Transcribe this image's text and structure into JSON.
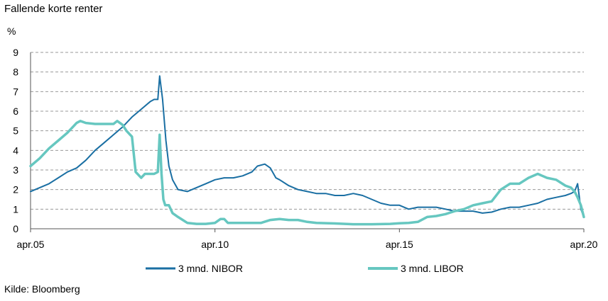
{
  "title": "Fallende korte renter",
  "unit": "%",
  "source": "Kilde: Bloomberg",
  "chart_data": {
    "type": "line",
    "title": "Fallende korte renter",
    "ylabel": "%",
    "ylim": [
      0,
      9
    ],
    "xlim": [
      2005.25,
      2020.25
    ],
    "y_ticks": [
      "0",
      "1",
      "2",
      "3",
      "4",
      "5",
      "6",
      "7",
      "8",
      "9"
    ],
    "x_ticks": [
      {
        "label": "apr.05",
        "value": 2005.25
      },
      {
        "label": "apr.10",
        "value": 2010.25
      },
      {
        "label": "apr.15",
        "value": 2015.25
      },
      {
        "label": "apr.20",
        "value": 2020.25
      }
    ],
    "grid": true,
    "legend_position": "bottom",
    "series": [
      {
        "name": "3 mnd. NIBOR",
        "color": "#1a6fa3",
        "x": [
          2005.25,
          2005.5,
          2005.75,
          2006.0,
          2006.25,
          2006.5,
          2006.75,
          2007.0,
          2007.25,
          2007.5,
          2007.75,
          2008.0,
          2008.25,
          2008.5,
          2008.6,
          2008.7,
          2008.75,
          2008.83,
          2008.92,
          2009.0,
          2009.1,
          2009.25,
          2009.5,
          2009.75,
          2010.0,
          2010.25,
          2010.5,
          2010.75,
          2011.0,
          2011.25,
          2011.4,
          2011.6,
          2011.75,
          2011.9,
          2012.0,
          2012.25,
          2012.5,
          2012.75,
          2013.0,
          2013.25,
          2013.5,
          2013.75,
          2014.0,
          2014.25,
          2014.5,
          2014.75,
          2015.0,
          2015.25,
          2015.5,
          2015.75,
          2016.0,
          2016.25,
          2016.5,
          2016.75,
          2017.0,
          2017.25,
          2017.5,
          2017.75,
          2018.0,
          2018.25,
          2018.5,
          2018.75,
          2019.0,
          2019.25,
          2019.5,
          2019.75,
          2019.9,
          2020.0,
          2020.08,
          2020.17,
          2020.25
        ],
        "values": [
          1.9,
          2.1,
          2.3,
          2.6,
          2.9,
          3.1,
          3.5,
          4.0,
          4.4,
          4.8,
          5.2,
          5.7,
          6.1,
          6.5,
          6.6,
          6.6,
          7.8,
          6.6,
          4.5,
          3.2,
          2.5,
          2.0,
          1.9,
          2.1,
          2.3,
          2.5,
          2.6,
          2.6,
          2.7,
          2.9,
          3.2,
          3.3,
          3.1,
          2.6,
          2.5,
          2.2,
          2.0,
          1.9,
          1.8,
          1.8,
          1.7,
          1.7,
          1.8,
          1.7,
          1.5,
          1.3,
          1.2,
          1.2,
          1.0,
          1.1,
          1.1,
          1.1,
          1.0,
          0.9,
          0.9,
          0.9,
          0.8,
          0.85,
          1.0,
          1.1,
          1.1,
          1.2,
          1.3,
          1.5,
          1.6,
          1.7,
          1.8,
          1.9,
          2.3,
          1.0,
          0.6
        ]
      },
      {
        "name": "3 mnd. LIBOR",
        "color": "#66c7c0",
        "x": [
          2005.25,
          2005.5,
          2005.75,
          2006.0,
          2006.25,
          2006.5,
          2006.6,
          2006.75,
          2007.0,
          2007.25,
          2007.5,
          2007.6,
          2007.75,
          2007.85,
          2008.0,
          2008.1,
          2008.25,
          2008.35,
          2008.5,
          2008.6,
          2008.7,
          2008.75,
          2008.8,
          2008.85,
          2008.9,
          2009.0,
          2009.1,
          2009.25,
          2009.5,
          2009.75,
          2010.0,
          2010.25,
          2010.4,
          2010.5,
          2010.6,
          2010.75,
          2011.0,
          2011.25,
          2011.5,
          2011.75,
          2012.0,
          2012.25,
          2012.5,
          2012.75,
          2013.0,
          2013.5,
          2014.0,
          2014.5,
          2015.0,
          2015.25,
          2015.5,
          2015.75,
          2016.0,
          2016.25,
          2016.5,
          2016.75,
          2017.0,
          2017.25,
          2017.5,
          2017.75,
          2018.0,
          2018.25,
          2018.5,
          2018.75,
          2019.0,
          2019.25,
          2019.5,
          2019.75,
          2019.9,
          2020.0,
          2020.08,
          2020.17,
          2020.25
        ],
        "values": [
          3.2,
          3.6,
          4.1,
          4.5,
          4.9,
          5.4,
          5.5,
          5.4,
          5.35,
          5.35,
          5.35,
          5.5,
          5.3,
          5.0,
          4.7,
          2.9,
          2.6,
          2.8,
          2.8,
          2.8,
          2.9,
          4.8,
          2.8,
          1.5,
          1.2,
          1.2,
          0.8,
          0.6,
          0.3,
          0.25,
          0.25,
          0.3,
          0.5,
          0.5,
          0.3,
          0.3,
          0.3,
          0.3,
          0.3,
          0.45,
          0.5,
          0.45,
          0.45,
          0.35,
          0.3,
          0.27,
          0.23,
          0.23,
          0.25,
          0.28,
          0.3,
          0.35,
          0.6,
          0.65,
          0.75,
          0.9,
          1.0,
          1.2,
          1.3,
          1.4,
          2.0,
          2.3,
          2.3,
          2.6,
          2.8,
          2.6,
          2.5,
          2.2,
          2.1,
          1.9,
          1.6,
          1.2,
          0.6
        ]
      }
    ]
  }
}
